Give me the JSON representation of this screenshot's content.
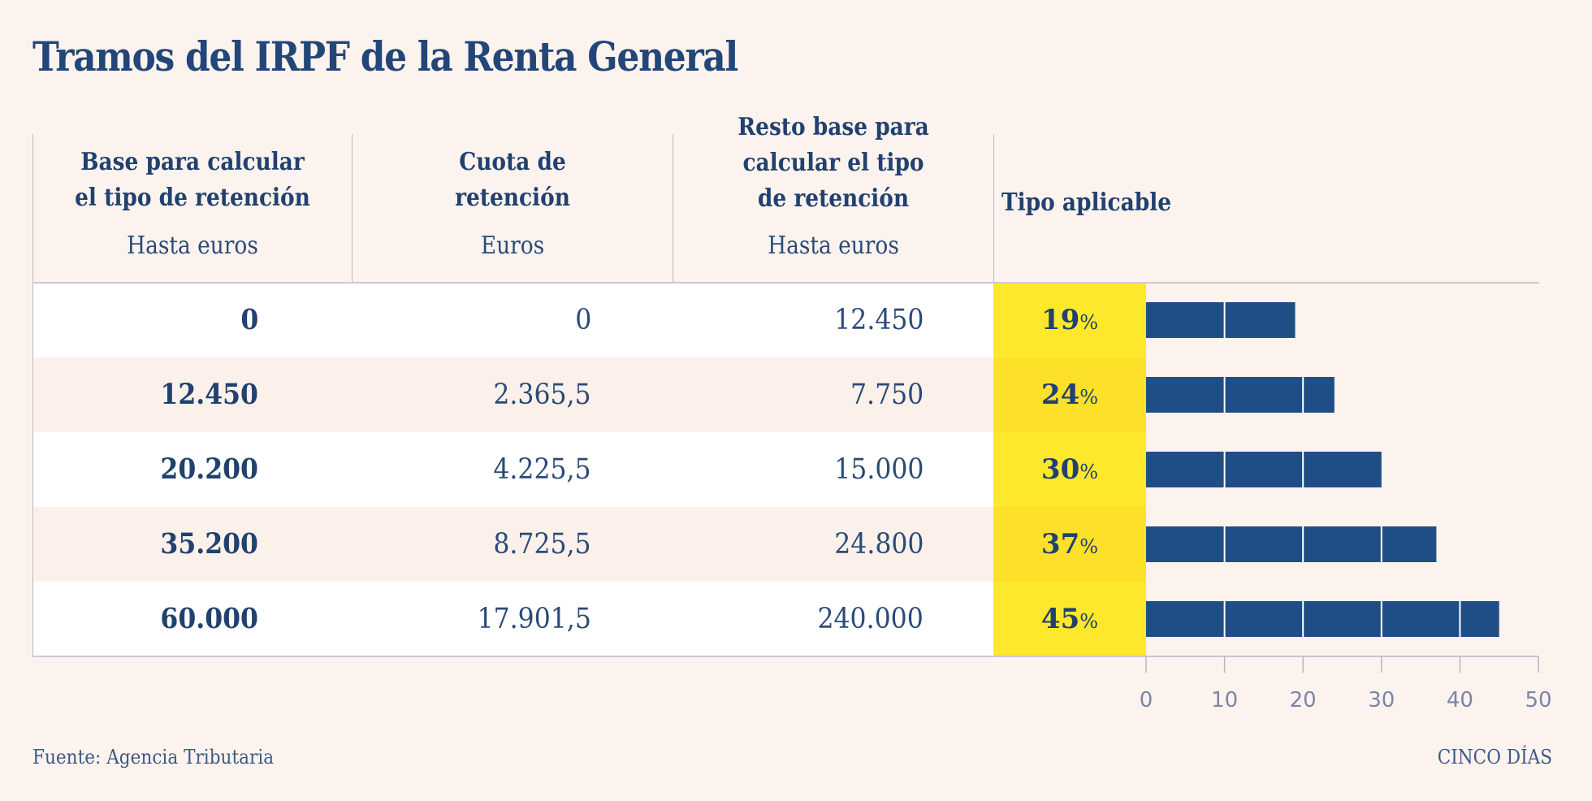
{
  "title": "Tramos del IRPF de la Renta General",
  "columns": [
    {
      "header": "Base para calcular el tipo de retención",
      "header_lines": [
        "Base para calcular",
        "el tipo de retención"
      ],
      "sub": "Hasta euros"
    },
    {
      "header": "Cuota de retención",
      "header_lines": [
        "Cuota de",
        "retención"
      ],
      "sub": "Euros"
    },
    {
      "header": "Resto base para calcular el tipo de retención",
      "header_lines": [
        "Resto base para",
        "calcular el tipo",
        "de retención"
      ],
      "sub": "Hasta euros"
    },
    {
      "header": "Tipo aplicable",
      "header_lines": [
        "Tipo aplicable"
      ],
      "sub": ""
    }
  ],
  "rows": [
    {
      "base": "0",
      "cuota": "0",
      "resto": "12.450",
      "tipo": "19",
      "tipo_unit": "%"
    },
    {
      "base": "12.450",
      "cuota": "2.365,5",
      "resto": "7.750",
      "tipo": "24",
      "tipo_unit": "%"
    },
    {
      "base": "20.200",
      "cuota": "4.225,5",
      "resto": "15.000",
      "tipo": "30",
      "tipo_unit": "%"
    },
    {
      "base": "35.200",
      "cuota": "8.725,5",
      "resto": "24.800",
      "tipo": "37",
      "tipo_unit": "%"
    },
    {
      "base": "60.000",
      "cuota": "17.901,5",
      "resto": "240.000",
      "tipo": "45",
      "tipo_unit": "%"
    }
  ],
  "footer": {
    "source": "Fuente: Agencia Tributaria",
    "brand": "CINCO DÍAS"
  },
  "colors": {
    "background": "#fcf3ee",
    "text": "#21416f",
    "bar": "#1f4e86",
    "highlight": "#fde82c",
    "gridline": "#ffffff"
  },
  "chart_data": {
    "type": "bar",
    "orientation": "horizontal",
    "title": "Tipo aplicable",
    "categories": [
      "0",
      "12.450",
      "20.200",
      "35.200",
      "60.000"
    ],
    "values": [
      19,
      24,
      30,
      37,
      45
    ],
    "xlabel": "",
    "ylabel": "",
    "xlim": [
      0,
      50
    ],
    "xticks": [
      0,
      10,
      20,
      30,
      40,
      50
    ],
    "xtick_labels": [
      "0",
      "10",
      "20",
      "30",
      "40",
      "50"
    ],
    "grid": true,
    "legend": "none"
  }
}
